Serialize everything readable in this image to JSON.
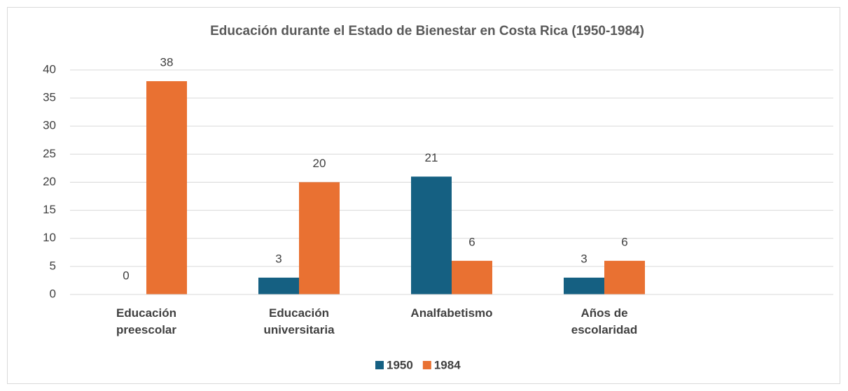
{
  "chart_data": {
    "type": "bar",
    "title": "Educación durante el Estado de Bienestar en Costa Rica (1950-1984)",
    "categories": [
      "Educación preescolar",
      "Educación universitaria",
      "Analfabetismo",
      "Años de escolaridad",
      null
    ],
    "series": [
      {
        "name": "1950",
        "color": "#156082",
        "values": [
          0,
          3,
          21,
          3,
          null
        ]
      },
      {
        "name": "1984",
        "color": "#e97132",
        "values": [
          38,
          20,
          6,
          6,
          null
        ]
      }
    ],
    "ylim": [
      0,
      40
    ],
    "yticks": [
      0,
      5,
      10,
      15,
      20,
      25,
      30,
      35,
      40
    ],
    "grid": true,
    "legend": "bottom"
  }
}
